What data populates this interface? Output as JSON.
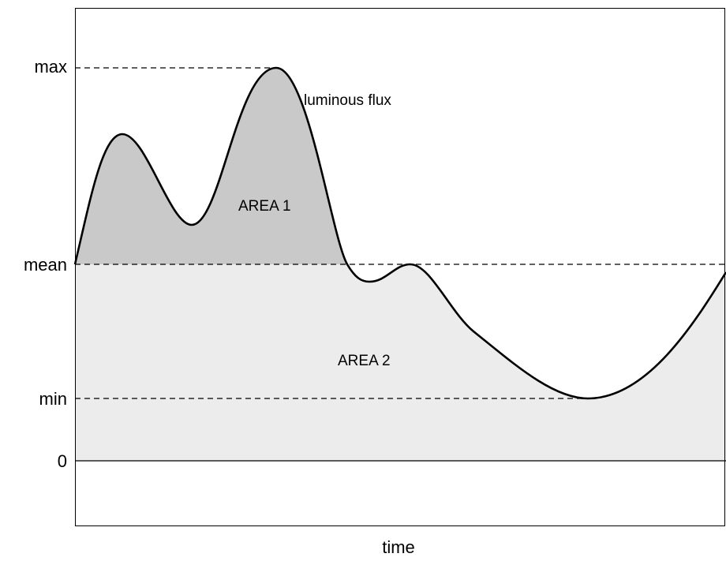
{
  "axis": {
    "labels": [
      "max",
      "mean",
      "min",
      "0"
    ],
    "x_label": "time"
  },
  "annotations": {
    "curve": "luminous flux",
    "area1": "AREA 1",
    "area2": "AREA 2"
  }
}
